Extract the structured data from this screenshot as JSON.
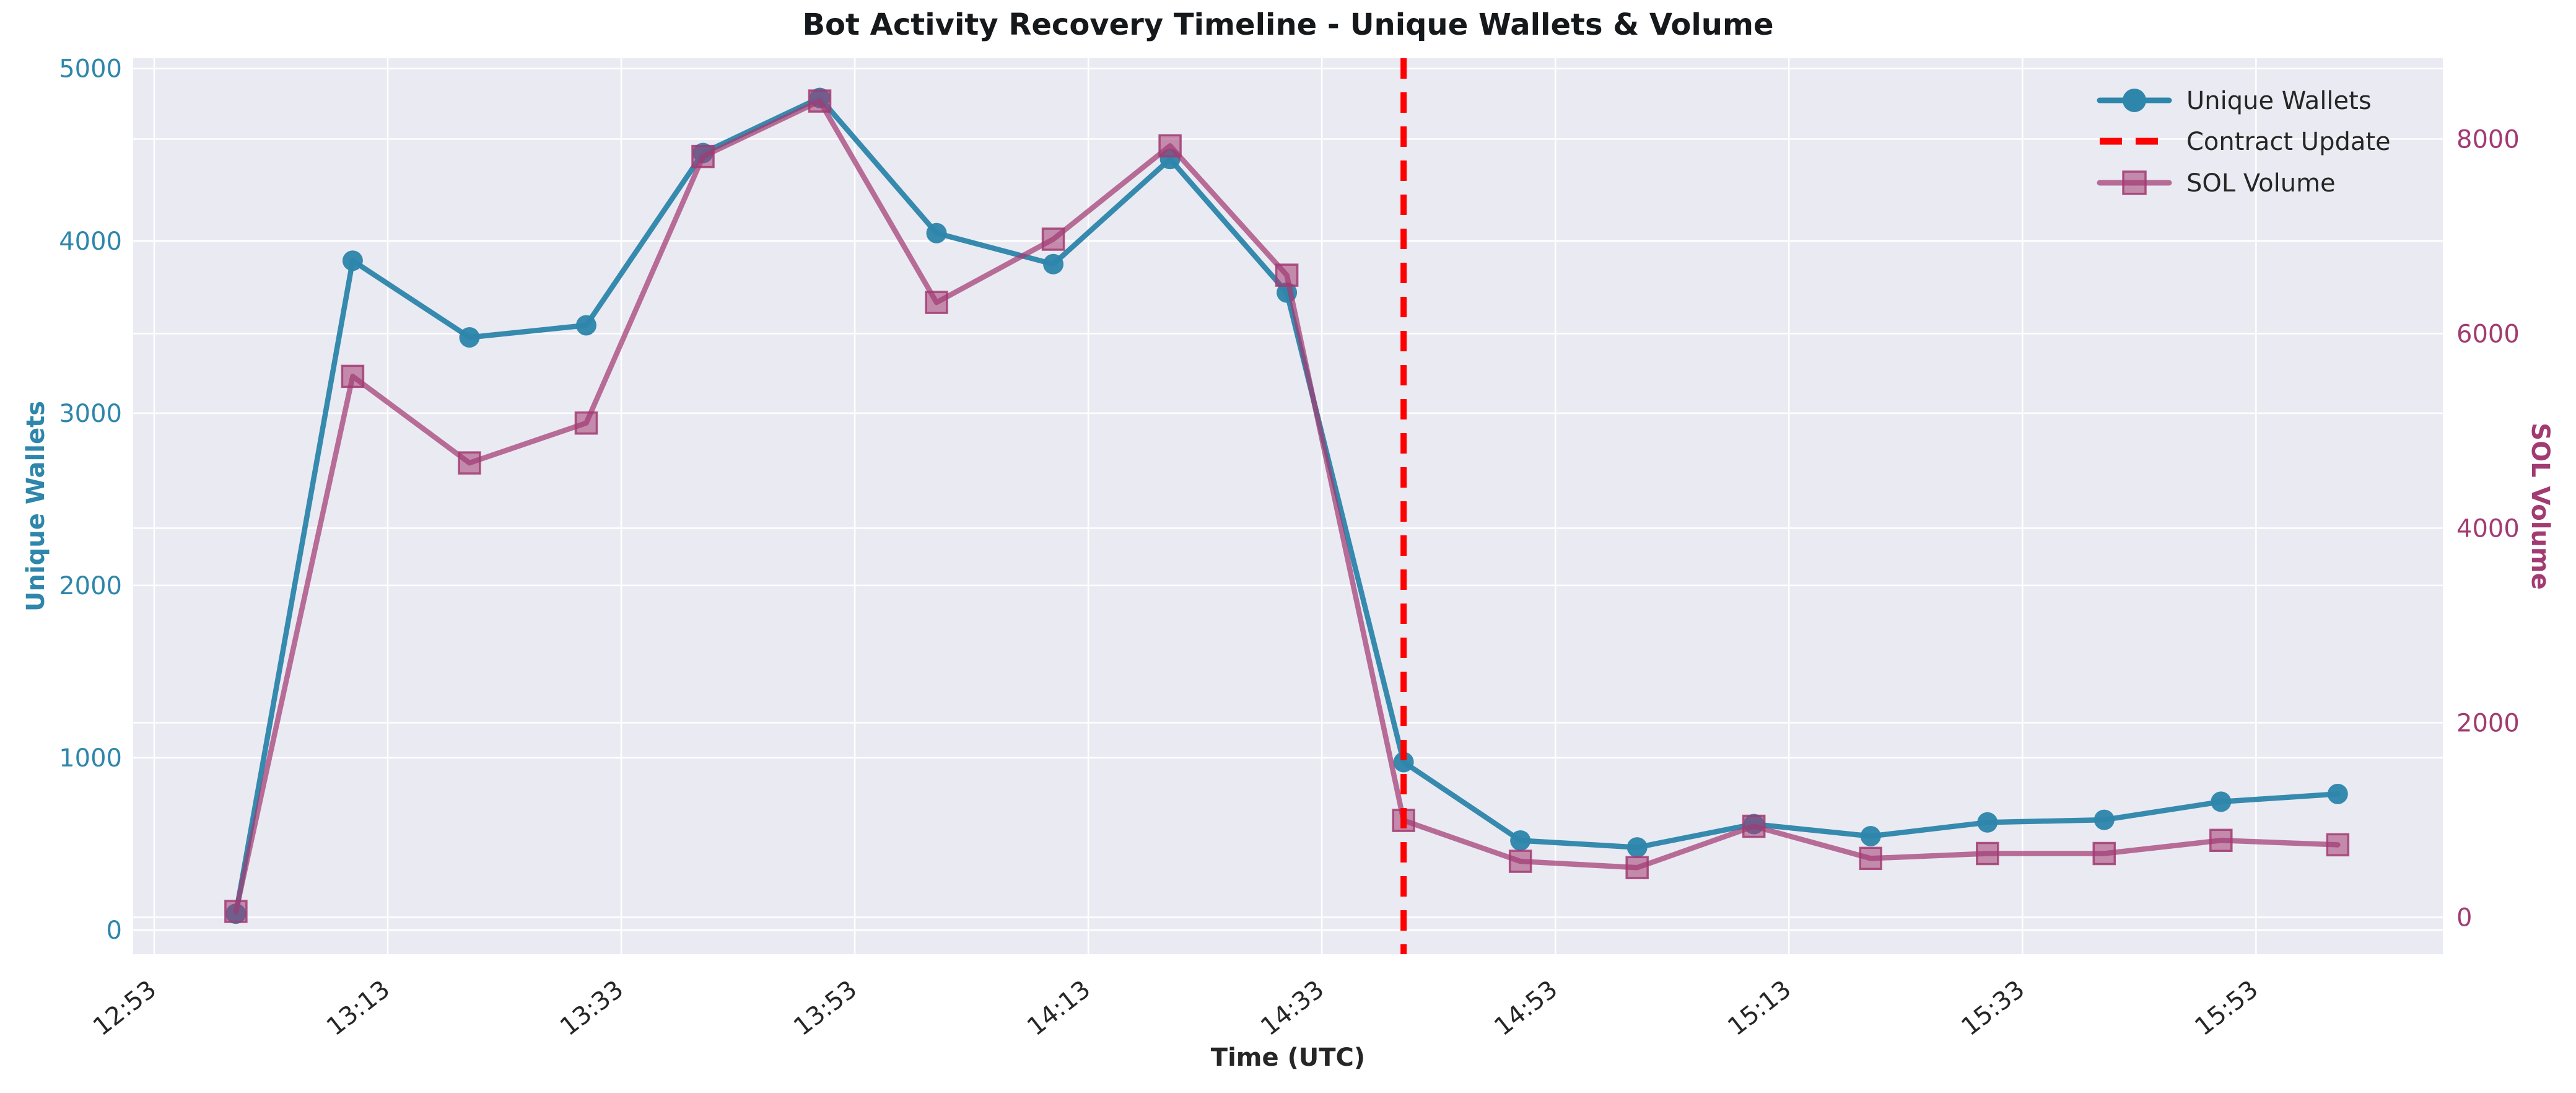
{
  "chart_data": {
    "type": "line",
    "title": "Bot Activity Recovery Timeline - Unique Wallets & Volume",
    "xlabel": "Time (UTC)",
    "ylabel_left": "Unique Wallets",
    "ylabel_right": "SOL Volume",
    "background": "#eaeaf2",
    "grid": true,
    "legend_position": "upper right",
    "legend": [
      "Unique Wallets",
      "Contract Update",
      "SOL Volume"
    ],
    "x_tick_labels": [
      "12:53",
      "13:13",
      "13:33",
      "13:53",
      "14:13",
      "14:33",
      "14:53",
      "15:13",
      "15:33",
      "15:53"
    ],
    "x": [
      "13:00",
      "13:10",
      "13:20",
      "13:30",
      "13:40",
      "13:50",
      "14:00",
      "14:10",
      "14:20",
      "14:30",
      "14:40",
      "14:50",
      "15:00",
      "15:10",
      "15:20",
      "15:30",
      "15:40",
      "15:50",
      "16:00"
    ],
    "series": [
      {
        "name": "Unique Wallets",
        "axis": "left",
        "color": "#2E86AB",
        "marker": "circle",
        "values": [
          95,
          3885,
          3440,
          3510,
          4510,
          4830,
          4045,
          3865,
          4475,
          3700,
          975,
          520,
          480,
          615,
          545,
          625,
          640,
          745,
          790
        ]
      },
      {
        "name": "SOL Volume",
        "axis": "right",
        "color": "#A23B72",
        "marker": "square",
        "values": [
          60,
          5560,
          4670,
          5080,
          7820,
          8390,
          6320,
          6970,
          7930,
          6600,
          995,
          575,
          510,
          935,
          605,
          655,
          655,
          790,
          745
        ]
      }
    ],
    "annotation_line": {
      "label": "Contract Update",
      "time": "14:40",
      "color": "#FF0000",
      "style": "dashed"
    },
    "left_axis": {
      "ticks": [
        0,
        1000,
        2000,
        3000,
        4000,
        5000
      ],
      "range": [
        -140,
        5060
      ],
      "color": "#2E86AB"
    },
    "right_axis": {
      "ticks": [
        0,
        2000,
        4000,
        6000,
        8000
      ],
      "range": [
        -380,
        8830
      ],
      "color": "#A23B72"
    },
    "x_range_minutes": [
      771.2,
      969.0
    ]
  }
}
